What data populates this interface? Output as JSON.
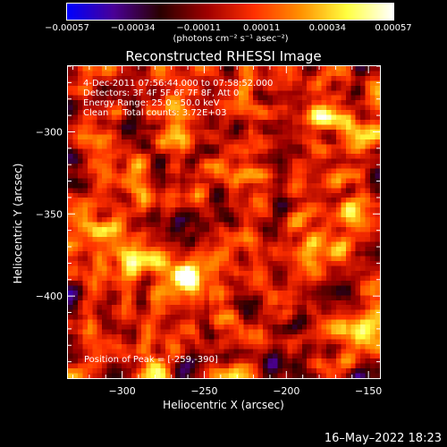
{
  "chart_data": {
    "type": "heatmap",
    "title": "Reconstructed RHESSI Image",
    "xlabel": "Heliocentric X (arcsec)",
    "ylabel": "Heliocentric Y (arcsec)",
    "xlim": [
      -333,
      -143
    ],
    "ylim": [
      -450,
      -260
    ],
    "x_ticks": [
      -300,
      -250,
      -200,
      -150
    ],
    "y_ticks": [
      -400,
      -350,
      -300
    ],
    "x_tick_labels": [
      "−300",
      "−250",
      "−200",
      "−150"
    ],
    "y_tick_labels": [
      "−400",
      "−350",
      "−300"
    ],
    "colorbar": {
      "range": [
        -0.00057,
        0.00057
      ],
      "tick_values": [
        -0.00057,
        -0.00034,
        -0.00011,
        0.00011,
        0.00034,
        0.00057
      ],
      "tick_labels": [
        "−0.00057",
        "−0.00034",
        "−0.00011",
        "0.00011",
        "0.00034",
        "0.00057"
      ],
      "unit_label": "(photons cm⁻² s⁻¹ asec⁻²)",
      "colors": [
        "#0000ff",
        "#4b0096",
        "#2a0000",
        "#a00000",
        "#ff3000",
        "#ff9000",
        "#ffff40",
        "#ffffff"
      ]
    },
    "annotations": [
      "4-Dec-2011 07:56:44.000 to 07:58:52.000",
      "Detectors: 3F 4F 5F 6F 7F 8F, Att 0",
      "Energy Range: 25.0 - 50.0 keV",
      "Clean     Total counts: 3.72E+03"
    ],
    "peak": {
      "label": "Position of Peak = [-259,-390]",
      "x": -259,
      "y": -390
    },
    "bright_sources": [
      {
        "x": -259,
        "y": -390,
        "value": 0.00057
      },
      {
        "x": -153,
        "y": -300,
        "value": 0.00045
      },
      {
        "x": -175,
        "y": -292,
        "value": 0.0004
      },
      {
        "x": -225,
        "y": -330,
        "value": 0.00022
      },
      {
        "x": -285,
        "y": -380,
        "value": 0.00025
      },
      {
        "x": -300,
        "y": -330,
        "value": 0.00025
      },
      {
        "x": -190,
        "y": -375,
        "value": 0.0003
      },
      {
        "x": -160,
        "y": -345,
        "value": 0.0003
      },
      {
        "x": -175,
        "y": -420,
        "value": 0.00028
      },
      {
        "x": -150,
        "y": -430,
        "value": 0.00035
      },
      {
        "x": -270,
        "y": -305,
        "value": 0.0002
      },
      {
        "x": -320,
        "y": -360,
        "value": 0.0002
      }
    ]
  },
  "footer": {
    "timestamp": "16–May–2022 18:23"
  }
}
